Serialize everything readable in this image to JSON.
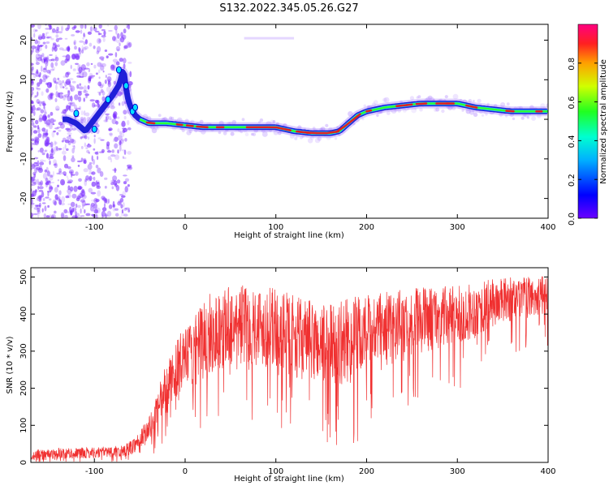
{
  "title": "S132.2022.345.05.26.G27",
  "colors": {
    "snr_line": "#f03030",
    "ridge_fill": "#2020d8",
    "ridge_core": "#e02020",
    "scatter": "#7a2cff",
    "colorbar_stops": [
      "#6a00ff",
      "#0000ff",
      "#00b0ff",
      "#00ffd0",
      "#20ff20",
      "#d0ff00",
      "#ffa000",
      "#ff2020",
      "#ff0080"
    ]
  },
  "chart_data": [
    {
      "type": "heatmap",
      "xlabel": "Height of straight line (km)",
      "ylabel": "Frequency (Hz)",
      "xlim": [
        -170,
        400
      ],
      "ylim": [
        -25,
        24
      ],
      "x_ticks": [
        -100,
        0,
        100,
        200,
        300,
        400
      ],
      "x_tick_labels": [
        "-100",
        "0",
        "100",
        "200",
        "300",
        "400"
      ],
      "y_ticks": [
        20,
        10,
        0,
        -10,
        -20
      ],
      "y_tick_labels": [
        "20",
        "10",
        "0",
        "-10",
        "-20"
      ],
      "colorbar": {
        "label": "Normalized spectral amplitude",
        "range": [
          0,
          1
        ],
        "ticks": [
          0.0,
          0.2,
          0.4,
          0.6,
          0.8
        ],
        "tick_labels": [
          "0.0",
          "0.2",
          "0.4",
          "0.6",
          "0.8"
        ]
      },
      "ridge": {
        "x": [
          -130,
          -120,
          -110,
          -100,
          -90,
          -80,
          -72,
          -68,
          -64,
          -60,
          -55,
          -50,
          -40,
          -20,
          0,
          20,
          40,
          60,
          80,
          100,
          120,
          140,
          150,
          160,
          170,
          180,
          190,
          200,
          210,
          220,
          240,
          260,
          280,
          300,
          320,
          340,
          360,
          380,
          400
        ],
        "y": [
          0,
          -1,
          -3,
          0,
          3,
          6,
          9,
          13,
          6,
          3,
          1,
          0,
          -1,
          -1,
          -1.5,
          -2,
          -2,
          -2,
          -2,
          -2,
          -3,
          -3.5,
          -3.5,
          -3.5,
          -3,
          -1,
          1,
          2,
          2.5,
          3,
          3.5,
          4,
          4,
          4,
          3,
          2.5,
          2,
          2,
          2
        ]
      }
    },
    {
      "type": "line",
      "xlabel": "Height of straight line (km)",
      "ylabel": "SNR (10 * v/v)",
      "xlim": [
        -170,
        400
      ],
      "ylim": [
        0,
        525
      ],
      "x_ticks": [
        -100,
        0,
        100,
        200,
        300,
        400
      ],
      "x_tick_labels": [
        "-100",
        "0",
        "100",
        "200",
        "300",
        "400"
      ],
      "y_ticks": [
        0,
        100,
        200,
        300,
        400,
        500
      ],
      "y_tick_labels": [
        "0",
        "100",
        "200",
        "300",
        "400",
        "500"
      ],
      "series": [
        {
          "x": [
            -170,
            -150,
            -130,
            -110,
            -90,
            -70,
            -60,
            -50,
            -40,
            -35,
            -30,
            -25,
            -20,
            -15,
            -10,
            -5,
            0,
            5,
            10,
            20,
            30,
            40,
            50,
            60,
            80,
            100,
            120,
            140,
            160,
            170,
            180,
            200,
            220,
            240,
            260,
            280,
            300,
            320,
            340,
            360,
            380,
            400
          ],
          "values": [
            20,
            22,
            25,
            25,
            28,
            30,
            40,
            60,
            90,
            110,
            140,
            180,
            200,
            220,
            250,
            270,
            280,
            290,
            300,
            330,
            350,
            360,
            370,
            375,
            370,
            360,
            340,
            325,
            315,
            320,
            330,
            345,
            360,
            375,
            385,
            390,
            395,
            410,
            430,
            440,
            445,
            450
          ],
          "spread": [
            15,
            15,
            15,
            15,
            15,
            15,
            20,
            25,
            35,
            40,
            50,
            60,
            70,
            70,
            75,
            80,
            80,
            85,
            90,
            110,
            110,
            110,
            110,
            110,
            110,
            110,
            110,
            110,
            115,
            115,
            115,
            110,
            100,
            95,
            90,
            85,
            80,
            75,
            65,
            60,
            55,
            55
          ]
        }
      ]
    }
  ]
}
